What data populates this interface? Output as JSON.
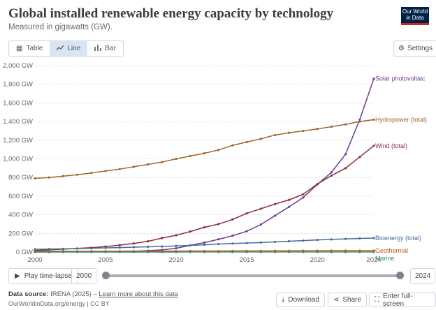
{
  "header": {
    "title": "Global installed renewable energy capacity by technology",
    "subtitle": "Measured in gigawatts (GW).",
    "logo_line1": "Our World",
    "logo_line2": "in Data"
  },
  "tabs": [
    {
      "label": "Table",
      "icon": "table-icon"
    },
    {
      "label": "Line",
      "icon": "line-chart-icon",
      "active": true
    },
    {
      "label": "Bar",
      "icon": "bar-chart-icon"
    }
  ],
  "settings_label": "Settings",
  "timeline": {
    "play_label": "Play time-lapse",
    "start": "2000",
    "end": "2024"
  },
  "footer": {
    "source_label": "Data source:",
    "source_text": "IRENA (2025) –",
    "source_link": "Learn more about this data",
    "site": "OurWorldinData.org/energy | CC BY",
    "download_label": "Download",
    "share_label": "Share",
    "fullscreen_label": "Enter full-screen"
  },
  "colors": {
    "solar": "#6d3e91",
    "hydro": "#a2662c",
    "wind": "#883039",
    "bio": "#4c6a9c",
    "geo": "#c05917",
    "marine": "#3a8f6f"
  },
  "chart_data": {
    "type": "line",
    "title": "Global installed renewable energy capacity by technology",
    "subtitle": "Measured in gigawatts (GW).",
    "x": [
      2000,
      2001,
      2002,
      2003,
      2004,
      2005,
      2006,
      2007,
      2008,
      2009,
      2010,
      2011,
      2012,
      2013,
      2014,
      2015,
      2016,
      2017,
      2018,
      2019,
      2020,
      2021,
      2022,
      2023,
      2024
    ],
    "xticks": [
      "2000",
      "2005",
      "2010",
      "2015",
      "2020",
      "2024"
    ],
    "yticks": [
      "0 GW",
      "200 GW",
      "400 GW",
      "600 GW",
      "800 GW",
      "1,000 GW",
      "1,200 GW",
      "1,400 GW",
      "1,600 GW",
      "1,800 GW",
      "2,000 GW"
    ],
    "ylim": [
      0,
      2000
    ],
    "grid": "horizontal",
    "series": [
      {
        "name": "Solar photovoltaic",
        "color_key": "solar",
        "values": [
          1,
          1,
          2,
          3,
          4,
          5,
          6,
          8,
          15,
          23,
          40,
          72,
          101,
          137,
          175,
          223,
          295,
          390,
          485,
          585,
          725,
          855,
          1050,
          1420,
          1860
        ]
      },
      {
        "name": "Hydropower (total)",
        "color_key": "hydro",
        "values": [
          790,
          800,
          815,
          830,
          848,
          870,
          890,
          915,
          940,
          965,
          1000,
          1030,
          1060,
          1095,
          1145,
          1180,
          1215,
          1255,
          1280,
          1300,
          1320,
          1345,
          1370,
          1400,
          1420
        ]
      },
      {
        "name": "Wind (total)",
        "color_key": "wind",
        "values": [
          17,
          23,
          31,
          39,
          47,
          59,
          74,
          92,
          115,
          150,
          180,
          220,
          265,
          300,
          350,
          415,
          465,
          515,
          560,
          620,
          730,
          820,
          900,
          1020,
          1140
        ]
      },
      {
        "name": "Bioenergy (total)",
        "color_key": "bio",
        "values": [
          30,
          32,
          35,
          37,
          40,
          45,
          48,
          52,
          56,
          60,
          66,
          71,
          78,
          86,
          92,
          96,
          102,
          109,
          116,
          123,
          130,
          136,
          141,
          146,
          150
        ]
      },
      {
        "name": "Geothermal",
        "color_key": "geo",
        "values": [
          8,
          8,
          8,
          8,
          9,
          9,
          9,
          10,
          10,
          10,
          10,
          11,
          11,
          11,
          12,
          12,
          12,
          13,
          13,
          14,
          14,
          15,
          15,
          15,
          15
        ]
      },
      {
        "name": "Marine",
        "color_key": "marine",
        "values": [
          0.3,
          0.3,
          0.3,
          0.3,
          0.3,
          0.3,
          0.3,
          0.3,
          0.3,
          0.3,
          0.3,
          0.5,
          0.5,
          0.5,
          0.5,
          0.5,
          0.5,
          0.5,
          0.5,
          0.5,
          0.5,
          0.5,
          0.5,
          0.5,
          0.5
        ]
      }
    ]
  }
}
